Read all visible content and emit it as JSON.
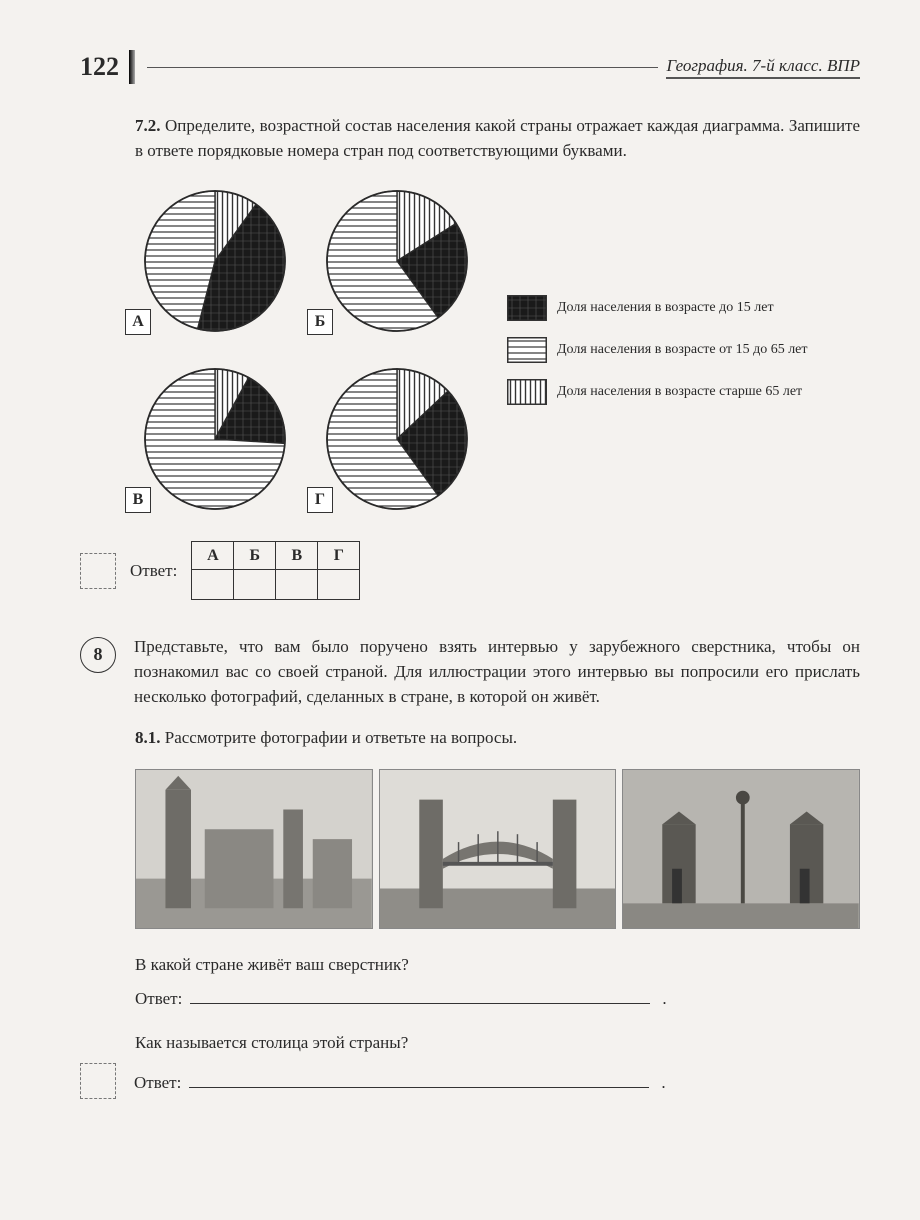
{
  "page_number": "122",
  "header_title": "География. 7-й класс. ВПР",
  "task72": {
    "number": "7.2.",
    "text": "Определите, возрастной состав населения какой страны отражает каждая диаграмма. Запишите в ответе порядковые номера стран под соответствующими буквами."
  },
  "pies": {
    "labels": [
      "А",
      "Б",
      "В",
      "Г"
    ],
    "patterns": {
      "under15": "crosshatch",
      "mid": "hstripe",
      "over65": "vstripe"
    },
    "colors": {
      "stroke": "#2a2a2a",
      "fill_bg": "#ffffff"
    },
    "data": [
      {
        "label": "А",
        "over65": 10,
        "under15": 44,
        "mid": 46
      },
      {
        "label": "Б",
        "over65": 16,
        "under15": 24,
        "mid": 60
      },
      {
        "label": "В",
        "over65": 8,
        "under15": 18,
        "mid": 74
      },
      {
        "label": "Г",
        "over65": 13,
        "under15": 27,
        "mid": 60
      }
    ],
    "radius": 70
  },
  "legend": [
    {
      "pattern": "crosshatch",
      "text": "Доля населения в возрасте до 15 лет"
    },
    {
      "pattern": "hstripe",
      "text": "Доля населения в возрасте от 15 до 65 лет"
    },
    {
      "pattern": "vstripe",
      "text": "Доля населения в возрасте старше 65 лет"
    }
  ],
  "answer_label": "Ответ:",
  "answer_cols": [
    "А",
    "Б",
    "В",
    "Г"
  ],
  "task8": {
    "badge": "8",
    "text": "Представьте, что вам было поручено взять интервью у зарубежного сверстника, чтобы он познакомил вас со своей страной. Для иллюстрации этого интервью вы попросили его прислать несколько фотографий, сделанных в стране, в которой он живёт."
  },
  "task81": {
    "number": "8.1.",
    "text": "Рассмотрите фотографии и ответьте на вопросы."
  },
  "q1": "В какой стране живёт ваш сверстник?",
  "q2": "Как называется столица этой страны?",
  "answer_word": "Ответ:"
}
